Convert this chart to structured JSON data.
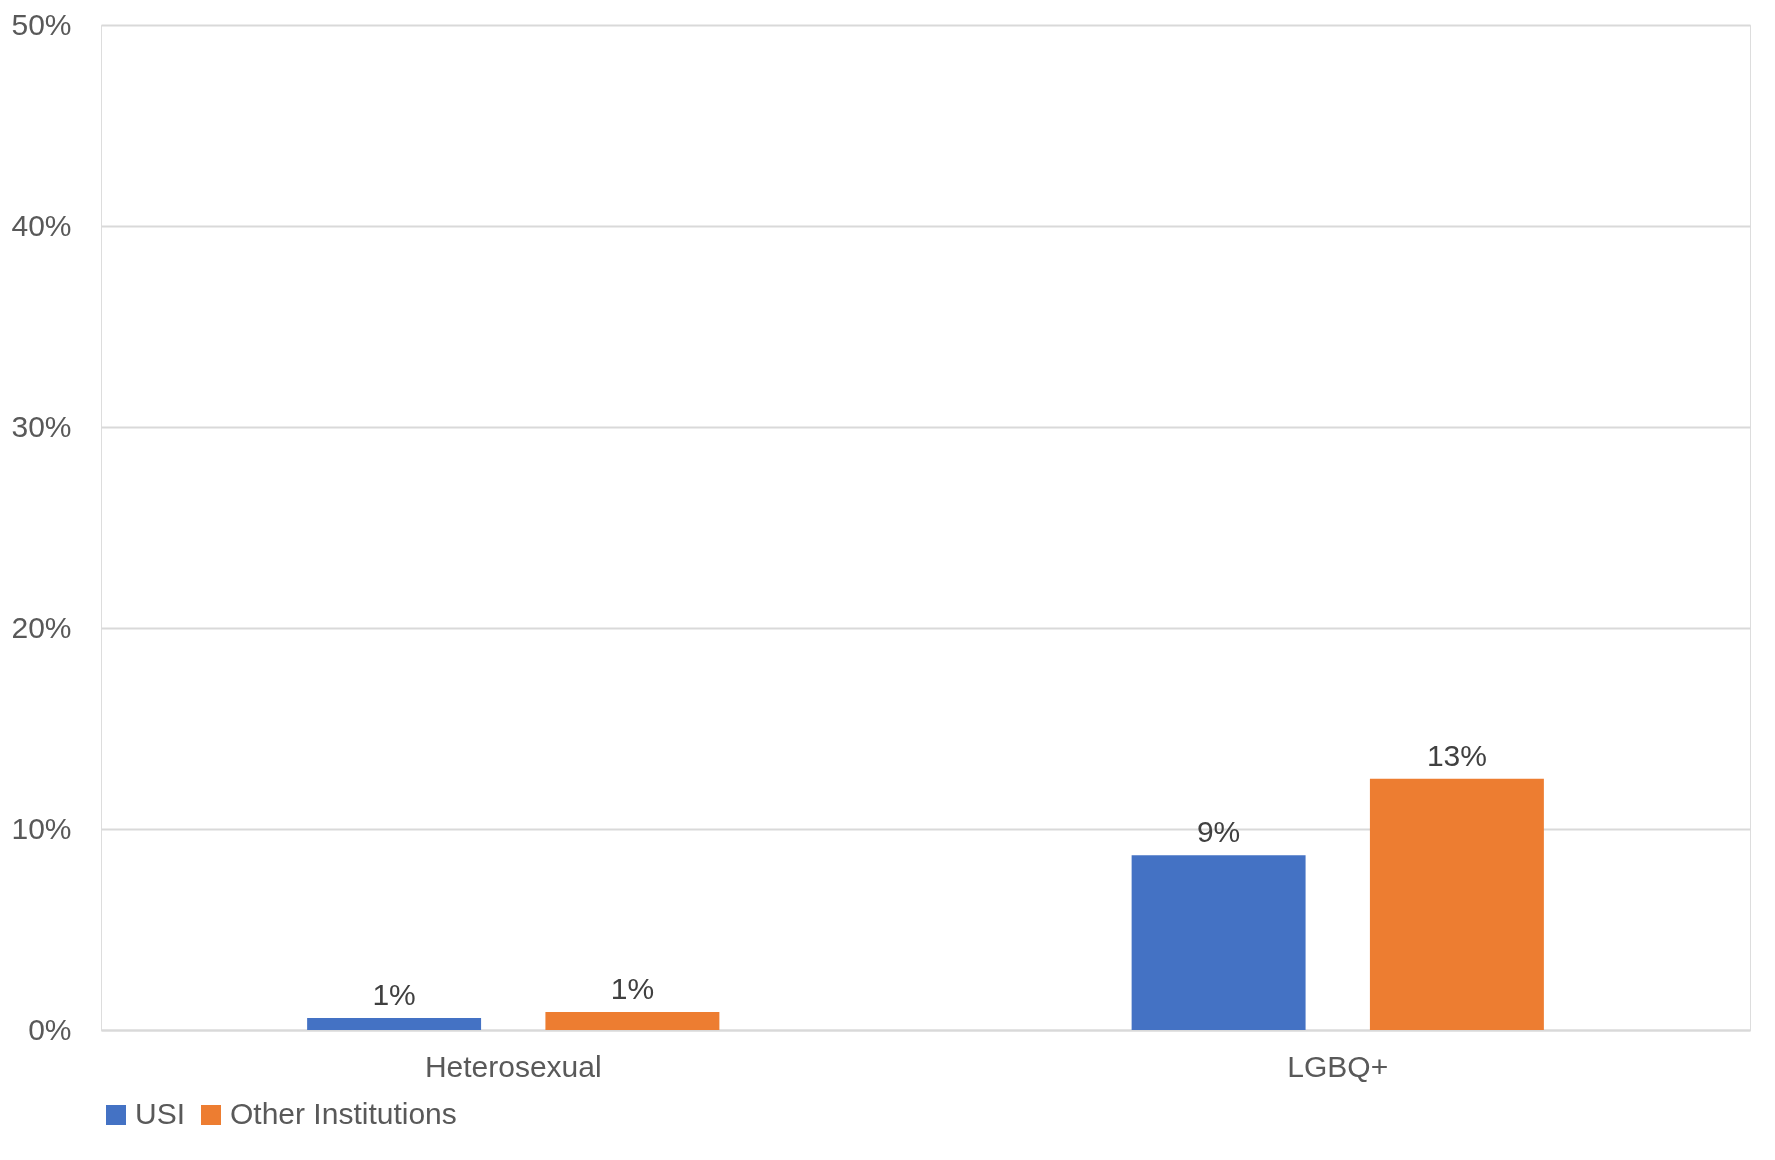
{
  "chart_data": {
    "type": "bar",
    "categories": [
      "Heterosexual",
      "LGBQ+"
    ],
    "series": [
      {
        "name": "USI",
        "color": "#4472c4",
        "values": [
          0.6,
          8.7
        ],
        "value_labels": [
          "1%",
          "9%"
        ]
      },
      {
        "name": "Other Institutions",
        "color": "#ed7d31",
        "values": [
          0.9,
          12.5
        ],
        "value_labels": [
          "1%",
          "13%"
        ]
      }
    ],
    "ylim": [
      0,
      50
    ],
    "yticks": [
      {
        "value": 0,
        "label": "0%"
      },
      {
        "value": 10,
        "label": "10%"
      },
      {
        "value": 20,
        "label": "20%"
      },
      {
        "value": 30,
        "label": "30%"
      },
      {
        "value": 40,
        "label": "40%"
      },
      {
        "value": 50,
        "label": "50%"
      }
    ],
    "grid": "y",
    "legend": "bottom"
  }
}
